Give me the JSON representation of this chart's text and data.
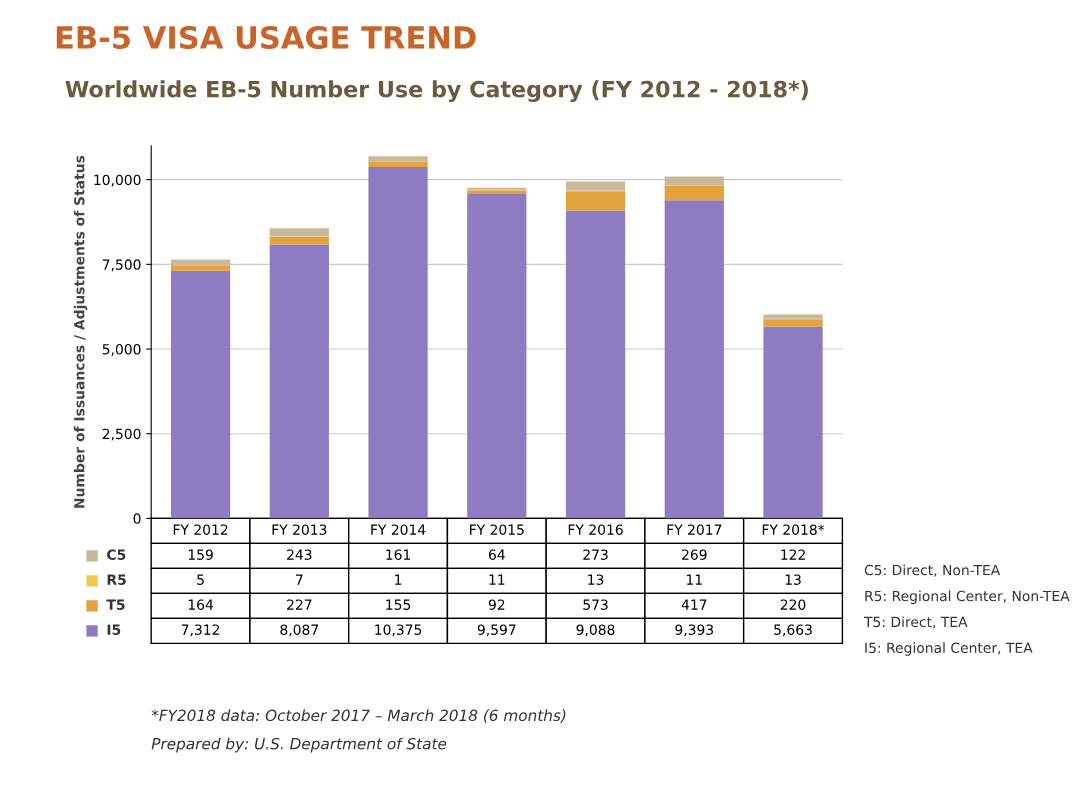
{
  "chart_data": {
    "type": "bar",
    "stacked": true,
    "title": "EB-5 VISA USAGE TREND",
    "subtitle": "Worldwide EB-5 Number Use by Category (FY 2012 - 2018*)",
    "ylabel": "Number of Issuances / Adjustments of Status",
    "categories": [
      "FY 2012",
      "FY 2013",
      "FY 2014",
      "FY 2015",
      "FY 2016",
      "FY 2017",
      "FY 2018*"
    ],
    "series": [
      {
        "name": "I5",
        "color": "#8e7cc3",
        "values": [
          7312,
          8087,
          10375,
          9597,
          9088,
          9393,
          5663
        ],
        "value_labels": [
          "7,312",
          "8,087",
          "10,375",
          "9,597",
          "9,088",
          "9,393",
          "5,663"
        ]
      },
      {
        "name": "T5",
        "color": "#e3a23b",
        "values": [
          164,
          227,
          155,
          92,
          573,
          417,
          220
        ],
        "value_labels": [
          "164",
          "227",
          "155",
          "92",
          "573",
          "417",
          "220"
        ]
      },
      {
        "name": "R5",
        "color": "#f2c94c",
        "values": [
          5,
          7,
          1,
          11,
          13,
          11,
          13
        ],
        "value_labels": [
          "5",
          "7",
          "1",
          "11",
          "13",
          "11",
          "13"
        ]
      },
      {
        "name": "C5",
        "color": "#c9b99b",
        "values": [
          159,
          243,
          161,
          64,
          273,
          269,
          122
        ],
        "value_labels": [
          "159",
          "243",
          "161",
          "64",
          "273",
          "269",
          "122"
        ]
      }
    ],
    "ylim": [
      0,
      11000
    ],
    "yticks": [
      0,
      {
        "value": 2500,
        "label": "2,500"
      },
      {
        "value": 5000,
        "label": "5,000"
      },
      {
        "value": 7500,
        "label": "7,500"
      },
      {
        "value": 10000,
        "label": "10,000"
      }
    ],
    "grid": "y",
    "legend": "bottom left",
    "annotations": [
      "C5: Direct, Non-TEA",
      "R5: Regional Center, Non-TEA",
      "T5: Direct, TEA",
      "I5: Regional Center, TEA",
      "*FY2018 data: October 2017 – March 2018 (6 months)",
      "Prepared by: U.S. Department of State"
    ]
  }
}
